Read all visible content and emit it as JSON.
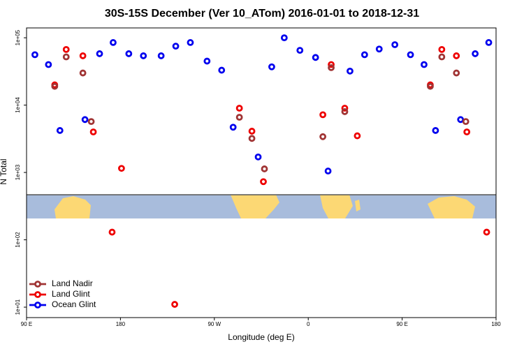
{
  "chart_data": {
    "type": "scatter",
    "title": "30S-15S December (Ver 10_ATom)   2016-01-01 to 2018-12-31",
    "xlabel": "Longitude (deg E)",
    "ylabel": "N Total",
    "xlim": [
      90,
      540
    ],
    "xticks": [
      {
        "value": 90,
        "label": "90 E"
      },
      180,
      {
        "value": 270,
        "label": "90 W"
      },
      {
        "value": 360,
        "label": "0"
      },
      {
        "value": 450,
        "label": "90 E"
      },
      {
        "value": 540,
        "label": "180"
      }
    ],
    "ylim": [
      7,
      140000
    ],
    "log_y": true,
    "yticks": [
      {
        "value": 10,
        "label": "1e+01"
      },
      {
        "value": 100,
        "label": "1e+02"
      },
      {
        "value": 1000,
        "label": "1e+03"
      },
      {
        "value": 10000,
        "label": "1e+04"
      },
      {
        "value": 100000,
        "label": "1e+05"
      }
    ],
    "legend": "lower left",
    "series": [
      {
        "name": "Land Nadir",
        "color": "#a03434",
        "x": [
          117,
          128,
          144,
          152,
          294,
          306,
          318,
          374,
          382,
          395,
          477,
          488,
          502,
          511
        ],
        "values": [
          19000,
          52000,
          30000,
          5700,
          6600,
          3200,
          1130,
          3400,
          36000,
          8000,
          19000,
          52000,
          30000,
          5700
        ]
      },
      {
        "name": "Land Glint",
        "color": "#ee0000",
        "x": [
          117,
          128,
          144,
          154,
          181,
          172,
          232,
          294,
          306,
          317,
          374,
          382,
          395,
          407,
          477,
          488,
          502,
          512,
          531
        ],
        "values": [
          20000,
          67000,
          54000,
          4000,
          1150,
          130,
          11,
          9000,
          4100,
          730,
          7200,
          40000,
          9000,
          3500,
          20000,
          67000,
          54000,
          4000,
          130
        ]
      },
      {
        "name": "Ocean Glint",
        "color": "#0000ee",
        "x": [
          98,
          111,
          122,
          146,
          160,
          173,
          188,
          202,
          219,
          233,
          247,
          263,
          277,
          288,
          312,
          325,
          337,
          352,
          367,
          379,
          400,
          414,
          428,
          443,
          458,
          471,
          482,
          506,
          520,
          533
        ],
        "values": [
          56000,
          40000,
          4200,
          6100,
          58000,
          85000,
          58000,
          54000,
          54000,
          75000,
          85000,
          45000,
          33000,
          4700,
          1700,
          37000,
          100000,
          65000,
          51000,
          1050,
          32000,
          56000,
          68000,
          79000,
          56000,
          40000,
          4200,
          6100,
          58000,
          85000
        ]
      }
    ]
  }
}
